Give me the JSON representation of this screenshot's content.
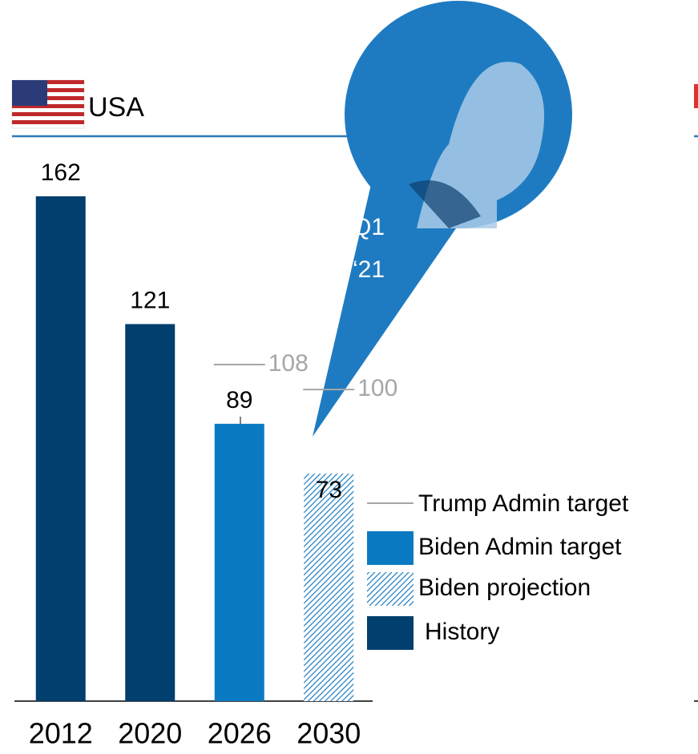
{
  "chart_data": {
    "type": "bar",
    "title": "USA",
    "categories": [
      "2012",
      "2020",
      "2026",
      "2030"
    ],
    "series": [
      {
        "name": "Trump Admin target",
        "color": "#a6a6a6",
        "style": "tick",
        "values": [
          null,
          null,
          108,
          100
        ]
      },
      {
        "name": "Biden Admin target",
        "color": "#0a7bc2",
        "style": "solid",
        "values": [
          null,
          null,
          89,
          null
        ]
      },
      {
        "name": "Biden projection",
        "color": "#1b7bc0",
        "style": "hatch",
        "values": [
          null,
          null,
          null,
          73
        ]
      },
      {
        "name": "History",
        "color": "#003f6e",
        "style": "solid",
        "values": [
          162,
          121,
          null,
          null
        ]
      }
    ],
    "annotation": [
      "Q1",
      "‘21"
    ]
  }
}
